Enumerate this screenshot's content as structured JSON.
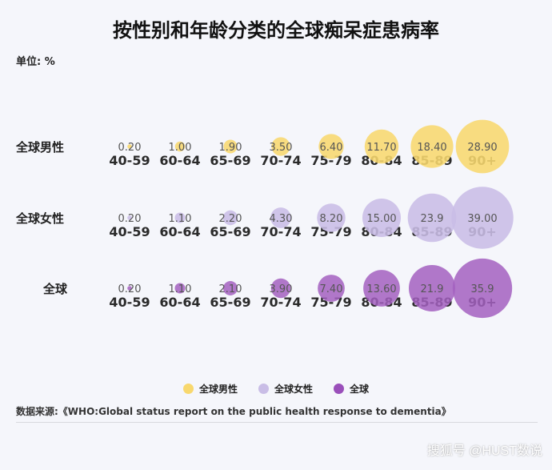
{
  "chart_data": {
    "type": "bubble",
    "title": "按性别和年龄分类的全球痴呆症患病率",
    "unit_label": "单位: %",
    "categories": [
      "40-59",
      "60-64",
      "65-69",
      "70-74",
      "75-79",
      "80-84",
      "85-89",
      "90+"
    ],
    "series": [
      {
        "name": "全球男性",
        "color": "#f8d86e",
        "values": [
          0.2,
          1.0,
          1.9,
          3.5,
          6.4,
          11.7,
          18.4,
          28.9
        ],
        "labels": [
          "0.20",
          "1.00",
          "1.90",
          "3.50",
          "6.40",
          "11.70",
          "18.40",
          "28.90"
        ]
      },
      {
        "name": "全球女性",
        "color": "#c9bde6",
        "values": [
          0.2,
          1.1,
          2.2,
          4.3,
          8.2,
          15.0,
          23.9,
          39.0
        ],
        "labels": [
          "0.20",
          "1.10",
          "2.20",
          "4.30",
          "8.20",
          "15.00",
          "23.9",
          "39.00"
        ]
      },
      {
        "name": "全球",
        "color": "#a360c0",
        "values": [
          0.2,
          1.1,
          2.1,
          3.9,
          7.4,
          13.6,
          21.9,
          35.9
        ],
        "labels": [
          "0.20",
          "1.10",
          "2.10",
          "3.90",
          "7.40",
          "13.60",
          "21.9",
          "35.9"
        ]
      }
    ],
    "legend_position": "bottom"
  },
  "source": "数据来源:《WHO:Global status report on the public health response to dementia》",
  "watermark": "搜狐号 @HUST数说"
}
